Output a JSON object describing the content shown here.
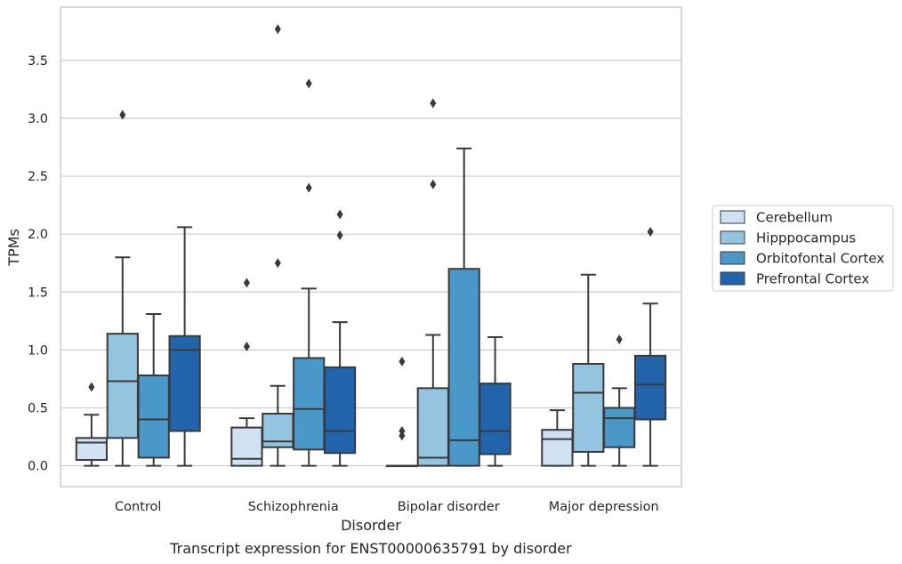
{
  "chart_data": {
    "type": "box",
    "title": "",
    "caption": "Transcript expression for ENST00000635791 by disorder",
    "xlabel": "Disorder",
    "ylabel": "TPMs",
    "ylim": [
      -0.18,
      3.96
    ],
    "yticks": [
      "0.0",
      "0.5",
      "1.0",
      "1.5",
      "2.0",
      "2.5",
      "3.0",
      "3.5"
    ],
    "categories": [
      "Control",
      "Schizophrenia",
      "Bipolar disorder",
      "Major depression"
    ],
    "grid": "horizontal",
    "legend_position": "right",
    "series": [
      {
        "name": "Cerebellum",
        "color": "#d0e1f2",
        "boxes": [
          {
            "category": "Control",
            "whisker_low": 0.0,
            "q1": 0.05,
            "median": 0.2,
            "q3": 0.24,
            "whisker_high": 0.44,
            "outliers": [
              0.68
            ]
          },
          {
            "category": "Schizophrenia",
            "whisker_low": 0.0,
            "q1": 0.0,
            "median": 0.06,
            "q3": 0.33,
            "whisker_high": 0.41,
            "outliers": [
              1.58,
              1.03
            ]
          },
          {
            "category": "Bipolar disorder",
            "whisker_low": 0.0,
            "q1": 0.0,
            "median": 0.0,
            "q3": 0.0,
            "whisker_high": 0.0,
            "outliers": [
              0.9,
              0.3,
              0.26
            ]
          },
          {
            "category": "Major depression",
            "whisker_low": 0.0,
            "q1": 0.0,
            "median": 0.23,
            "q3": 0.31,
            "whisker_high": 0.48,
            "outliers": []
          }
        ]
      },
      {
        "name": "Hipppocampus",
        "color": "#94c4df",
        "boxes": [
          {
            "category": "Control",
            "whisker_low": 0.0,
            "q1": 0.24,
            "median": 0.73,
            "q3": 1.14,
            "whisker_high": 1.8,
            "outliers": [
              3.03
            ]
          },
          {
            "category": "Schizophrenia",
            "whisker_low": 0.0,
            "q1": 0.16,
            "median": 0.21,
            "q3": 0.45,
            "whisker_high": 0.69,
            "outliers": [
              3.77,
              1.75
            ]
          },
          {
            "category": "Bipolar disorder",
            "whisker_low": 0.0,
            "q1": 0.0,
            "median": 0.07,
            "q3": 0.67,
            "whisker_high": 1.13,
            "outliers": [
              3.13,
              2.43
            ]
          },
          {
            "category": "Major depression",
            "whisker_low": 0.0,
            "q1": 0.12,
            "median": 0.63,
            "q3": 0.88,
            "whisker_high": 1.65,
            "outliers": []
          }
        ]
      },
      {
        "name": "Orbitofontal Cortex",
        "color": "#4a98c9",
        "boxes": [
          {
            "category": "Control",
            "whisker_low": 0.0,
            "q1": 0.07,
            "median": 0.4,
            "q3": 0.78,
            "whisker_high": 1.31,
            "outliers": []
          },
          {
            "category": "Schizophrenia",
            "whisker_low": 0.0,
            "q1": 0.14,
            "median": 0.49,
            "q3": 0.93,
            "whisker_high": 1.53,
            "outliers": [
              3.3,
              2.4
            ]
          },
          {
            "category": "Bipolar disorder",
            "whisker_low": 0.0,
            "q1": 0.0,
            "median": 0.22,
            "q3": 1.7,
            "whisker_high": 2.74,
            "outliers": []
          },
          {
            "category": "Major depression",
            "whisker_low": 0.0,
            "q1": 0.16,
            "median": 0.41,
            "q3": 0.5,
            "whisker_high": 0.67,
            "outliers": [
              1.09
            ]
          }
        ]
      },
      {
        "name": "Prefrontal Cortex",
        "color": "#2164ab",
        "boxes": [
          {
            "category": "Control",
            "whisker_low": 0.0,
            "q1": 0.3,
            "median": 1.0,
            "q3": 1.12,
            "whisker_high": 2.06,
            "outliers": []
          },
          {
            "category": "Schizophrenia",
            "whisker_low": 0.0,
            "q1": 0.11,
            "median": 0.3,
            "q3": 0.85,
            "whisker_high": 1.24,
            "outliers": [
              2.17,
              1.99
            ]
          },
          {
            "category": "Bipolar disorder",
            "whisker_low": 0.0,
            "q1": 0.1,
            "median": 0.3,
            "q3": 0.71,
            "whisker_high": 1.11,
            "outliers": []
          },
          {
            "category": "Major depression",
            "whisker_low": 0.0,
            "q1": 0.4,
            "median": 0.7,
            "q3": 0.95,
            "whisker_high": 1.4,
            "outliers": [
              2.02
            ]
          }
        ]
      }
    ]
  }
}
